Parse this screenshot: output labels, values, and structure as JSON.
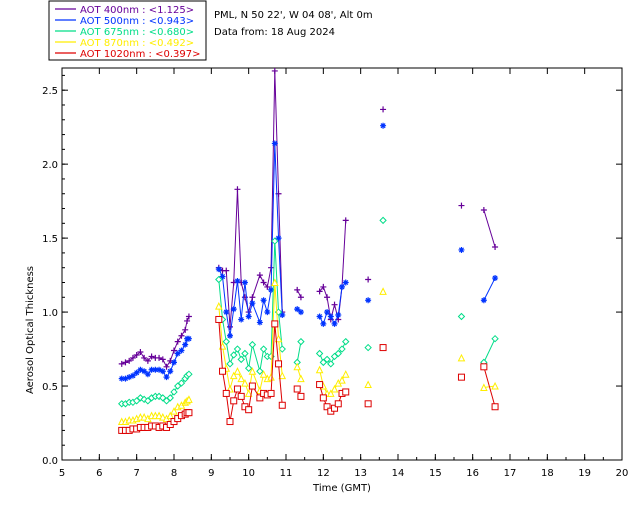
{
  "header": {
    "site": "PML, N 50 22', W 04 08', Alt 0m",
    "date": "Data from: 18 Aug 2024"
  },
  "legend": [
    {
      "label": "AOT  400nm : <1.125>",
      "color": "#660099"
    },
    {
      "label": "AOT  500nm : <0.943>",
      "color": "#0033ff"
    },
    {
      "label": "AOT  675nm : <0.680>",
      "color": "#00dd88"
    },
    {
      "label": "AOT  870nm : <0.492>",
      "color": "#ffee00"
    },
    {
      "label": "AOT 1020nm : <0.397>",
      "color": "#dd0000"
    }
  ],
  "chart_data": {
    "type": "scatter",
    "xlabel": "Time (GMT)",
    "ylabel": "Aerosol Optical Thickness",
    "xlim": [
      5,
      20
    ],
    "ylim": [
      0,
      2.65
    ],
    "xticks": [
      "5",
      "6",
      "7",
      "8",
      "9",
      "10",
      "11",
      "12",
      "13",
      "14",
      "15",
      "16",
      "17",
      "18",
      "19",
      "20"
    ],
    "yticks": [
      "0.0",
      "0.5",
      "1.0",
      "1.5",
      "2.0",
      "2.5"
    ],
    "series": [
      {
        "name": "AOT  400nm : <1.125>",
        "color": "#660099",
        "marker": "plus",
        "x": [
          6.6,
          6.7,
          6.8,
          6.9,
          7.0,
          7.1,
          7.2,
          7.3,
          7.4,
          7.5,
          7.6,
          7.7,
          7.8,
          7.9,
          8.0,
          8.1,
          8.2,
          8.3,
          8.35,
          8.4,
          9.2,
          9.3,
          9.4,
          9.5,
          9.6,
          9.7,
          9.8,
          9.9,
          10.0,
          10.1,
          10.3,
          10.4,
          10.5,
          10.6,
          10.7,
          10.8,
          10.9,
          11.3,
          11.4,
          11.9,
          12.0,
          12.1,
          12.2,
          12.3,
          12.4,
          12.5,
          12.6,
          13.2,
          13.6,
          15.7,
          16.3,
          16.6
        ],
        "y": [
          0.65,
          0.66,
          0.67,
          0.69,
          0.71,
          0.73,
          0.69,
          0.67,
          0.7,
          0.69,
          0.69,
          0.68,
          0.63,
          0.67,
          0.74,
          0.8,
          0.84,
          0.88,
          0.94,
          0.97,
          1.3,
          1.28,
          1.28,
          0.9,
          1.2,
          1.83,
          1.2,
          1.1,
          1.0,
          1.1,
          1.25,
          1.2,
          1.17,
          1.3,
          2.63,
          1.8,
          1.0,
          1.15,
          1.1,
          1.14,
          1.17,
          1.1,
          0.95,
          1.05,
          0.95,
          1.17,
          1.62,
          1.22,
          2.37,
          1.72,
          1.69,
          1.44
        ]
      },
      {
        "name": "AOT  500nm : <0.943>",
        "color": "#0033ff",
        "marker": "star",
        "x": [
          6.6,
          6.7,
          6.8,
          6.9,
          7.0,
          7.1,
          7.2,
          7.3,
          7.4,
          7.5,
          7.6,
          7.7,
          7.8,
          7.9,
          8.0,
          8.1,
          8.2,
          8.3,
          8.35,
          8.4,
          9.2,
          9.3,
          9.4,
          9.5,
          9.6,
          9.7,
          9.8,
          9.9,
          10.0,
          10.1,
          10.3,
          10.4,
          10.5,
          10.6,
          10.7,
          10.8,
          10.9,
          11.3,
          11.4,
          11.9,
          12.0,
          12.1,
          12.2,
          12.3,
          12.4,
          12.5,
          12.6,
          13.2,
          13.6,
          15.7,
          16.3,
          16.6
        ],
        "y": [
          0.55,
          0.55,
          0.56,
          0.57,
          0.59,
          0.61,
          0.6,
          0.58,
          0.61,
          0.61,
          0.61,
          0.6,
          0.56,
          0.6,
          0.66,
          0.72,
          0.74,
          0.78,
          0.82,
          0.82,
          1.29,
          1.24,
          1.0,
          0.84,
          1.02,
          1.21,
          0.95,
          1.2,
          0.97,
          1.06,
          0.93,
          1.08,
          1.0,
          1.15,
          2.14,
          1.5,
          0.98,
          1.02,
          1.0,
          0.97,
          0.92,
          1.0,
          0.97,
          0.92,
          0.98,
          1.17,
          1.2,
          1.08,
          2.26,
          1.42,
          1.08,
          1.23
        ]
      },
      {
        "name": "AOT  675nm : <0.680>",
        "color": "#00dd88",
        "marker": "diamond",
        "x": [
          6.6,
          6.7,
          6.8,
          6.9,
          7.0,
          7.1,
          7.2,
          7.3,
          7.4,
          7.5,
          7.6,
          7.7,
          7.8,
          7.9,
          8.0,
          8.1,
          8.2,
          8.3,
          8.35,
          8.4,
          9.2,
          9.3,
          9.4,
          9.5,
          9.6,
          9.7,
          9.8,
          9.9,
          10.0,
          10.1,
          10.3,
          10.4,
          10.5,
          10.6,
          10.7,
          10.8,
          10.9,
          11.3,
          11.4,
          11.9,
          12.0,
          12.1,
          12.2,
          12.3,
          12.4,
          12.5,
          12.6,
          13.2,
          13.6,
          15.7,
          16.3,
          16.6
        ],
        "y": [
          0.38,
          0.38,
          0.39,
          0.39,
          0.4,
          0.42,
          0.41,
          0.4,
          0.42,
          0.43,
          0.43,
          0.42,
          0.4,
          0.42,
          0.46,
          0.5,
          0.52,
          0.55,
          0.57,
          0.58,
          1.22,
          0.95,
          0.8,
          0.65,
          0.71,
          0.75,
          0.68,
          0.72,
          0.62,
          0.78,
          0.6,
          0.75,
          0.7,
          0.7,
          1.48,
          1.0,
          0.75,
          0.66,
          0.8,
          0.72,
          0.66,
          0.68,
          0.65,
          0.7,
          0.72,
          0.75,
          0.8,
          0.76,
          1.62,
          0.97,
          0.66,
          0.82
        ]
      },
      {
        "name": "AOT  870nm : <0.492>",
        "color": "#ffee00",
        "marker": "triangle",
        "x": [
          6.6,
          6.7,
          6.8,
          6.9,
          7.0,
          7.1,
          7.2,
          7.3,
          7.4,
          7.5,
          7.6,
          7.7,
          7.8,
          7.9,
          8.0,
          8.1,
          8.2,
          8.3,
          8.35,
          8.4,
          9.2,
          9.3,
          9.4,
          9.5,
          9.6,
          9.7,
          9.8,
          9.9,
          10.0,
          10.1,
          10.3,
          10.4,
          10.5,
          10.6,
          10.7,
          10.8,
          10.9,
          11.3,
          11.4,
          11.9,
          12.0,
          12.1,
          12.2,
          12.3,
          12.4,
          12.5,
          12.6,
          13.2,
          13.6,
          15.7,
          16.3,
          16.6
        ],
        "y": [
          0.26,
          0.26,
          0.27,
          0.27,
          0.28,
          0.29,
          0.29,
          0.28,
          0.3,
          0.3,
          0.3,
          0.29,
          0.28,
          0.3,
          0.33,
          0.36,
          0.37,
          0.39,
          0.4,
          0.41,
          1.04,
          0.77,
          0.62,
          0.48,
          0.57,
          0.6,
          0.55,
          0.52,
          0.45,
          0.6,
          0.47,
          0.58,
          0.55,
          0.56,
          1.2,
          0.82,
          0.57,
          0.63,
          0.55,
          0.61,
          0.5,
          0.45,
          0.45,
          0.48,
          0.52,
          0.54,
          0.58,
          0.51,
          1.14,
          0.69,
          0.49,
          0.5
        ]
      },
      {
        "name": "AOT 1020nm : <0.397>",
        "color": "#dd0000",
        "marker": "square",
        "x": [
          6.6,
          6.7,
          6.8,
          6.9,
          7.0,
          7.1,
          7.2,
          7.3,
          7.4,
          7.5,
          7.6,
          7.7,
          7.8,
          7.9,
          8.0,
          8.1,
          8.2,
          8.3,
          8.35,
          8.4,
          9.2,
          9.3,
          9.4,
          9.5,
          9.6,
          9.7,
          9.8,
          9.9,
          10.0,
          10.1,
          10.3,
          10.4,
          10.5,
          10.6,
          10.7,
          10.8,
          10.9,
          11.3,
          11.4,
          11.9,
          12.0,
          12.1,
          12.2,
          12.3,
          12.4,
          12.5,
          12.6,
          13.2,
          13.6,
          15.7,
          16.3,
          16.6
        ],
        "y": [
          0.2,
          0.2,
          0.2,
          0.21,
          0.21,
          0.22,
          0.22,
          0.22,
          0.23,
          0.23,
          0.22,
          0.23,
          0.22,
          0.24,
          0.26,
          0.28,
          0.3,
          0.31,
          0.32,
          0.32,
          0.95,
          0.6,
          0.45,
          0.26,
          0.4,
          0.48,
          0.43,
          0.36,
          0.34,
          0.5,
          0.42,
          0.45,
          0.44,
          0.45,
          0.92,
          0.65,
          0.37,
          0.48,
          0.43,
          0.51,
          0.42,
          0.36,
          0.33,
          0.35,
          0.38,
          0.45,
          0.46,
          0.38,
          0.76,
          0.56,
          0.63,
          0.36
        ]
      }
    ]
  }
}
